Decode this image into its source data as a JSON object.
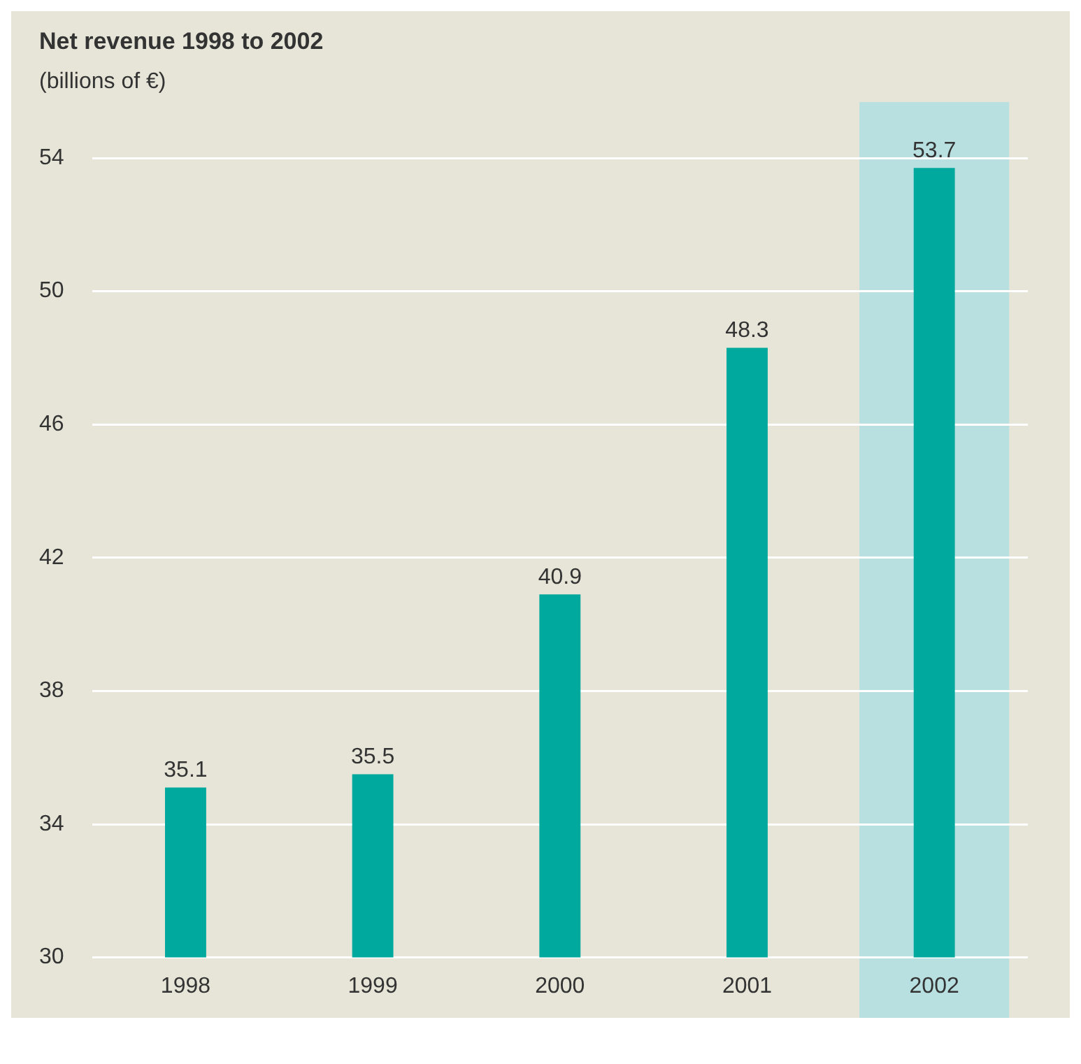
{
  "chart_data": {
    "type": "bar",
    "title": "Net revenue 1998 to 2002",
    "subtitle": "(billions of €)",
    "categories": [
      "1998",
      "1999",
      "2000",
      "2001",
      "2002"
    ],
    "values": [
      35.1,
      35.5,
      40.9,
      48.3,
      53.7
    ],
    "color": "#00a99d",
    "ylim": [
      30,
      54
    ],
    "yticks": [
      30,
      34,
      38,
      42,
      46,
      50,
      54
    ],
    "grid": "y",
    "data_labels": true,
    "bands": [
      {
        "axis": "x",
        "from": "2002",
        "to": "2002",
        "color": "#b9e0e1"
      }
    ]
  }
}
